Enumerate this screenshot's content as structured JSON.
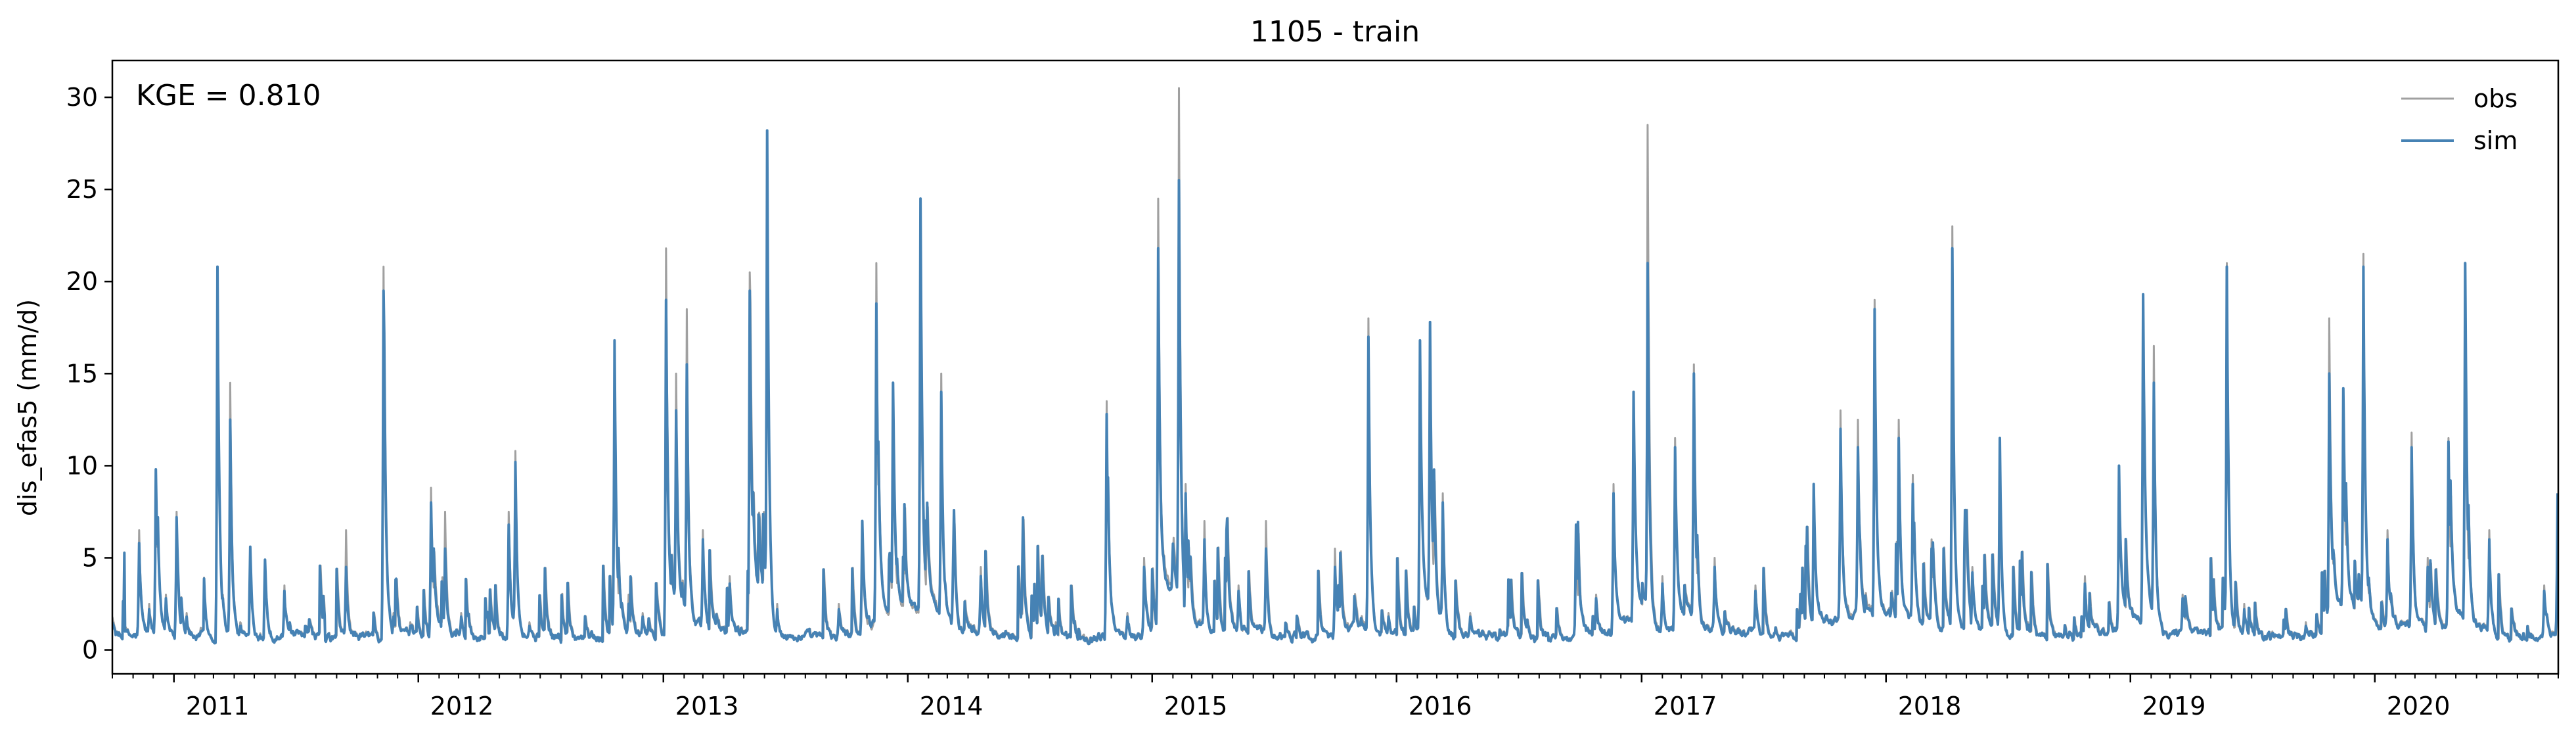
{
  "chart_data": {
    "type": "line",
    "title": "1105 - train",
    "ylabel": "dis_efas5 (mm/d)",
    "xlabel": "",
    "annotation": "KGE = 0.810",
    "xlim": [
      "2010-10-01",
      "2020-09-30"
    ],
    "ylim": [
      -1.3,
      32.0
    ],
    "yticks": [
      0,
      5,
      10,
      15,
      20,
      25,
      30
    ],
    "xticks": [
      {
        "label": "2011",
        "date": "2011-01-01"
      },
      {
        "label": "2012",
        "date": "2012-01-01"
      },
      {
        "label": "2013",
        "date": "2013-01-01"
      },
      {
        "label": "2014",
        "date": "2014-01-01"
      },
      {
        "label": "2015",
        "date": "2015-01-01"
      },
      {
        "label": "2016",
        "date": "2016-01-01"
      },
      {
        "label": "2017",
        "date": "2017-01-01"
      },
      {
        "label": "2018",
        "date": "2018-01-01"
      },
      {
        "label": "2019",
        "date": "2019-01-01"
      },
      {
        "label": "2020",
        "date": "2020-01-01"
      }
    ],
    "grid": false,
    "legend_position": "top-right",
    "series": [
      {
        "name": "obs",
        "color": "#a0a0a0",
        "points": [
          [
            "2010-10-01",
            1.8
          ],
          [
            "2010-10-20",
            1.2
          ],
          [
            "2010-11-10",
            6.5
          ],
          [
            "2010-11-25",
            2.5
          ],
          [
            "2010-12-05",
            9.5
          ],
          [
            "2010-12-20",
            3.0
          ],
          [
            "2011-01-05",
            7.5
          ],
          [
            "2011-01-20",
            2.0
          ],
          [
            "2011-02-10",
            1.2
          ],
          [
            "2011-02-25",
            0.8
          ],
          [
            "2011-03-07",
            20.5
          ],
          [
            "2011-03-15",
            3.0
          ],
          [
            "2011-03-26",
            14.5
          ],
          [
            "2011-04-10",
            1.5
          ],
          [
            "2011-05-10",
            0.9
          ],
          [
            "2011-06-15",
            3.5
          ],
          [
            "2011-07-10",
            1.0
          ],
          [
            "2011-08-15",
            0.6
          ],
          [
            "2011-09-15",
            6.5
          ],
          [
            "2011-10-15",
            1.0
          ],
          [
            "2011-11-10",
            20.8
          ],
          [
            "2011-11-25",
            2.0
          ],
          [
            "2011-12-20",
            1.5
          ],
          [
            "2012-01-20",
            8.8
          ],
          [
            "2012-02-10",
            7.5
          ],
          [
            "2012-03-05",
            2.0
          ],
          [
            "2012-04-15",
            1.0
          ],
          [
            "2012-05-15",
            7.5
          ],
          [
            "2012-05-25",
            10.8
          ],
          [
            "2012-06-15",
            1.5
          ],
          [
            "2012-08-01",
            0.5
          ],
          [
            "2012-09-15",
            1.0
          ],
          [
            "2012-10-20",
            16.5
          ],
          [
            "2012-11-10",
            3.0
          ],
          [
            "2012-12-01",
            2.0
          ],
          [
            "2013-01-05",
            21.8
          ],
          [
            "2013-01-20",
            15.0
          ],
          [
            "2013-02-05",
            18.5
          ],
          [
            "2013-03-01",
            6.5
          ],
          [
            "2013-04-10",
            4.0
          ],
          [
            "2013-05-10",
            20.5
          ],
          [
            "2013-06-05",
            28.0
          ],
          [
            "2013-06-20",
            2.5
          ],
          [
            "2013-08-01",
            1.0
          ],
          [
            "2013-09-20",
            2.5
          ],
          [
            "2013-10-25",
            6.0
          ],
          [
            "2013-11-15",
            21.0
          ],
          [
            "2013-12-10",
            13.0
          ],
          [
            "2014-01-20",
            20.0
          ],
          [
            "2014-02-20",
            15.0
          ],
          [
            "2014-03-10",
            6.0
          ],
          [
            "2014-04-20",
            4.5
          ],
          [
            "2014-06-20",
            2.5
          ],
          [
            "2014-08-10",
            1.5
          ],
          [
            "2014-09-20",
            0.8
          ],
          [
            "2014-10-25",
            13.5
          ],
          [
            "2014-11-25",
            2.0
          ],
          [
            "2014-12-20",
            5.0
          ],
          [
            "2015-01-10",
            24.5
          ],
          [
            "2015-02-10",
            30.5
          ],
          [
            "2015-02-20",
            9.0
          ],
          [
            "2015-03-20",
            7.0
          ],
          [
            "2015-05-10",
            3.5
          ],
          [
            "2015-06-20",
            7.0
          ],
          [
            "2015-08-01",
            1.0
          ],
          [
            "2015-10-01",
            5.5
          ],
          [
            "2015-11-20",
            18.0
          ],
          [
            "2015-12-20",
            2.0
          ],
          [
            "2016-02-05",
            16.5
          ],
          [
            "2016-02-20",
            17.5
          ],
          [
            "2016-03-10",
            8.5
          ],
          [
            "2016-04-20",
            2.0
          ],
          [
            "2016-06-15",
            1.5
          ],
          [
            "2016-08-15",
            0.6
          ],
          [
            "2016-09-25",
            6.5
          ],
          [
            "2016-10-25",
            3.0
          ],
          [
            "2016-11-20",
            9.0
          ],
          [
            "2016-12-20",
            14.0
          ],
          [
            "2017-01-10",
            28.5
          ],
          [
            "2017-02-01",
            4.0
          ],
          [
            "2017-02-20",
            11.5
          ],
          [
            "2017-03-20",
            15.5
          ],
          [
            "2017-04-20",
            5.0
          ],
          [
            "2017-06-20",
            3.5
          ],
          [
            "2017-08-10",
            1.0
          ],
          [
            "2017-09-15",
            9.0
          ],
          [
            "2017-10-25",
            13.0
          ],
          [
            "2017-11-20",
            12.5
          ],
          [
            "2017-12-15",
            19.0
          ],
          [
            "2018-01-20",
            12.5
          ],
          [
            "2018-02-10",
            9.5
          ],
          [
            "2018-03-10",
            6.0
          ],
          [
            "2018-04-10",
            23.0
          ],
          [
            "2018-05-10",
            4.5
          ],
          [
            "2018-06-20",
            11.5
          ],
          [
            "2018-08-01",
            1.5
          ],
          [
            "2018-09-10",
            1.0
          ],
          [
            "2018-10-25",
            4.0
          ],
          [
            "2018-12-15",
            10.0
          ],
          [
            "2019-01-20",
            19.0
          ],
          [
            "2019-02-05",
            16.5
          ],
          [
            "2019-03-20",
            3.0
          ],
          [
            "2019-05-25",
            21.0
          ],
          [
            "2019-06-20",
            2.5
          ],
          [
            "2019-08-01",
            1.0
          ],
          [
            "2019-09-20",
            1.5
          ],
          [
            "2019-10-25",
            18.0
          ],
          [
            "2019-11-15",
            14.0
          ],
          [
            "2019-12-15",
            21.5
          ],
          [
            "2020-01-20",
            6.5
          ],
          [
            "2020-02-25",
            11.8
          ],
          [
            "2020-03-20",
            5.0
          ],
          [
            "2020-04-20",
            11.5
          ],
          [
            "2020-05-15",
            20.5
          ],
          [
            "2020-06-20",
            6.5
          ],
          [
            "2020-08-01",
            1.0
          ],
          [
            "2020-09-10",
            3.5
          ],
          [
            "2020-09-22",
            1.0
          ],
          [
            "2020-09-30",
            8.5
          ]
        ]
      },
      {
        "name": "sim",
        "color": "#4682b4",
        "points": [
          [
            "2010-10-01",
            1.5
          ],
          [
            "2010-10-20",
            1.0
          ],
          [
            "2010-11-10",
            5.8
          ],
          [
            "2010-11-25",
            2.2
          ],
          [
            "2010-12-05",
            9.8
          ],
          [
            "2010-12-20",
            2.8
          ],
          [
            "2011-01-05",
            7.2
          ],
          [
            "2011-01-20",
            1.8
          ],
          [
            "2011-02-10",
            1.0
          ],
          [
            "2011-02-25",
            0.7
          ],
          [
            "2011-03-07",
            20.8
          ],
          [
            "2011-03-15",
            2.8
          ],
          [
            "2011-03-26",
            12.5
          ],
          [
            "2011-04-10",
            1.3
          ],
          [
            "2011-05-10",
            0.8
          ],
          [
            "2011-06-15",
            3.2
          ],
          [
            "2011-07-10",
            0.9
          ],
          [
            "2011-08-15",
            0.5
          ],
          [
            "2011-09-15",
            4.5
          ],
          [
            "2011-10-15",
            0.9
          ],
          [
            "2011-11-10",
            19.5
          ],
          [
            "2011-11-25",
            1.8
          ],
          [
            "2011-12-20",
            1.3
          ],
          [
            "2012-01-20",
            8.0
          ],
          [
            "2012-02-10",
            5.5
          ],
          [
            "2012-03-05",
            1.8
          ],
          [
            "2012-04-15",
            0.9
          ],
          [
            "2012-05-15",
            6.8
          ],
          [
            "2012-05-25",
            10.2
          ],
          [
            "2012-06-15",
            1.3
          ],
          [
            "2012-08-01",
            0.4
          ],
          [
            "2012-09-15",
            0.9
          ],
          [
            "2012-10-20",
            16.8
          ],
          [
            "2012-11-10",
            2.5
          ],
          [
            "2012-12-01",
            1.8
          ],
          [
            "2013-01-05",
            19.0
          ],
          [
            "2013-01-20",
            13.0
          ],
          [
            "2013-02-05",
            15.5
          ],
          [
            "2013-03-01",
            6.0
          ],
          [
            "2013-04-10",
            3.6
          ],
          [
            "2013-05-10",
            19.5
          ],
          [
            "2013-06-05",
            28.2
          ],
          [
            "2013-06-20",
            2.2
          ],
          [
            "2013-08-01",
            0.9
          ],
          [
            "2013-09-20",
            2.2
          ],
          [
            "2013-10-25",
            7.0
          ],
          [
            "2013-11-15",
            18.8
          ],
          [
            "2013-12-10",
            14.5
          ],
          [
            "2014-01-20",
            24.5
          ],
          [
            "2014-02-20",
            14.0
          ],
          [
            "2014-03-10",
            5.5
          ],
          [
            "2014-04-20",
            4.0
          ],
          [
            "2014-06-20",
            2.2
          ],
          [
            "2014-08-10",
            1.3
          ],
          [
            "2014-09-20",
            0.7
          ],
          [
            "2014-10-25",
            12.8
          ],
          [
            "2014-11-25",
            1.8
          ],
          [
            "2014-12-20",
            4.5
          ],
          [
            "2015-01-10",
            21.8
          ],
          [
            "2015-02-10",
            25.5
          ],
          [
            "2015-02-20",
            8.5
          ],
          [
            "2015-03-20",
            6.0
          ],
          [
            "2015-05-10",
            3.2
          ],
          [
            "2015-06-20",
            5.5
          ],
          [
            "2015-08-01",
            0.9
          ],
          [
            "2015-10-01",
            4.5
          ],
          [
            "2015-11-20",
            17.0
          ],
          [
            "2015-12-20",
            1.8
          ],
          [
            "2016-02-05",
            16.8
          ],
          [
            "2016-02-20",
            17.8
          ],
          [
            "2016-03-10",
            8.0
          ],
          [
            "2016-04-20",
            1.8
          ],
          [
            "2016-06-15",
            1.3
          ],
          [
            "2016-08-15",
            0.5
          ],
          [
            "2016-09-25",
            6.8
          ],
          [
            "2016-10-25",
            2.8
          ],
          [
            "2016-11-20",
            8.5
          ],
          [
            "2016-12-20",
            14.0
          ],
          [
            "2017-01-10",
            21.0
          ],
          [
            "2017-02-01",
            3.6
          ],
          [
            "2017-02-20",
            11.0
          ],
          [
            "2017-03-20",
            15.0
          ],
          [
            "2017-04-20",
            4.5
          ],
          [
            "2017-06-20",
            3.2
          ],
          [
            "2017-08-10",
            0.9
          ],
          [
            "2017-09-15",
            9.0
          ],
          [
            "2017-10-25",
            12.0
          ],
          [
            "2017-11-20",
            11.0
          ],
          [
            "2017-12-15",
            18.5
          ],
          [
            "2018-01-20",
            11.5
          ],
          [
            "2018-02-10",
            9.0
          ],
          [
            "2018-03-10",
            5.5
          ],
          [
            "2018-04-10",
            21.8
          ],
          [
            "2018-05-10",
            4.2
          ],
          [
            "2018-06-20",
            11.5
          ],
          [
            "2018-08-01",
            1.3
          ],
          [
            "2018-09-10",
            0.9
          ],
          [
            "2018-10-25",
            3.6
          ],
          [
            "2018-12-15",
            10.0
          ],
          [
            "2019-01-20",
            19.3
          ],
          [
            "2019-02-05",
            14.5
          ],
          [
            "2019-03-20",
            2.8
          ],
          [
            "2019-05-25",
            20.8
          ],
          [
            "2019-06-20",
            2.2
          ],
          [
            "2019-08-01",
            0.9
          ],
          [
            "2019-09-20",
            1.3
          ],
          [
            "2019-10-25",
            15.0
          ],
          [
            "2019-11-15",
            14.2
          ],
          [
            "2019-12-15",
            20.8
          ],
          [
            "2020-01-20",
            6.0
          ],
          [
            "2020-02-25",
            11.0
          ],
          [
            "2020-03-20",
            4.5
          ],
          [
            "2020-04-20",
            11.3
          ],
          [
            "2020-05-15",
            21.0
          ],
          [
            "2020-06-20",
            6.0
          ],
          [
            "2020-08-01",
            0.9
          ],
          [
            "2020-09-10",
            3.2
          ],
          [
            "2020-09-22",
            0.9
          ],
          [
            "2020-09-30",
            8.5
          ]
        ]
      }
    ]
  }
}
